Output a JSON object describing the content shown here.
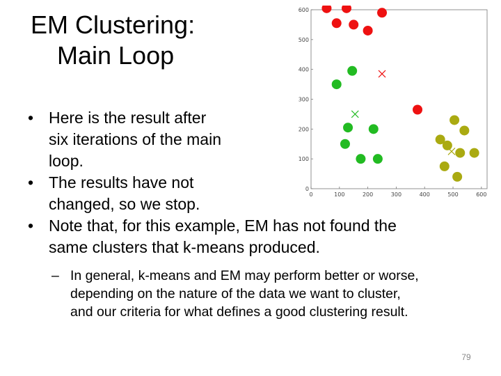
{
  "slide": {
    "title_line1": "EM Clustering:",
    "title_line2": "Main Loop",
    "bullets": [
      {
        "lines": [
          "Here is the result after",
          "six iterations of the main",
          "loop."
        ]
      },
      {
        "lines": [
          "The results have not",
          "changed, so we stop."
        ]
      },
      {
        "lines": [
          "Note that, for this example, EM has not found the",
          "same clusters that k-means produced."
        ]
      }
    ],
    "bullet_glyph": "•",
    "sub_bullet": {
      "glyph": "–",
      "lines": [
        "In general, k-means and EM may perform better or worse,",
        "depending on the nature of the data we want to cluster,",
        "and our criteria for what defines a good clustering result."
      ]
    },
    "page_number": "79"
  },
  "chart_data": {
    "type": "scatter",
    "title": "",
    "xlabel": "",
    "ylabel": "",
    "xlim": [
      0,
      620
    ],
    "ylim": [
      0,
      600
    ],
    "x_ticks": [
      0,
      100,
      200,
      300,
      400,
      500,
      600
    ],
    "y_ticks": [
      0,
      100,
      200,
      300,
      400,
      500,
      600
    ],
    "grid": false,
    "series": [
      {
        "color": "#ee1111",
        "points": [
          [
            55,
            605
          ],
          [
            125,
            605
          ],
          [
            90,
            555
          ],
          [
            150,
            550
          ],
          [
            200,
            530
          ],
          [
            250,
            590
          ],
          [
            375,
            265
          ]
        ],
        "center": [
          250,
          385
        ]
      },
      {
        "color": "#22bb22",
        "points": [
          [
            90,
            350
          ],
          [
            145,
            395
          ],
          [
            130,
            205
          ],
          [
            220,
            200
          ],
          [
            120,
            150
          ],
          [
            175,
            100
          ],
          [
            235,
            100
          ]
        ],
        "center": [
          155,
          250
        ]
      },
      {
        "color": "#aaaa11",
        "points": [
          [
            505,
            230
          ],
          [
            540,
            195
          ],
          [
            455,
            165
          ],
          [
            480,
            145
          ],
          [
            525,
            120
          ],
          [
            575,
            120
          ],
          [
            470,
            75
          ],
          [
            515,
            40
          ]
        ],
        "center": [
          495,
          125
        ]
      }
    ]
  }
}
